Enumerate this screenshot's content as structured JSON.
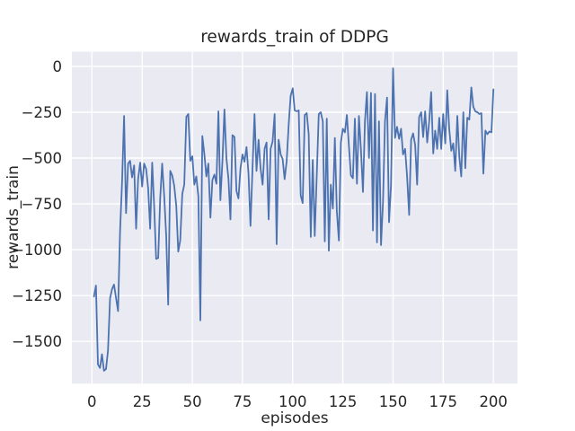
{
  "figure": {
    "title": "rewards_train of DDPG"
  },
  "chart_data": {
    "type": "line",
    "title": "rewards_train of DDPG",
    "xlabel": "episodes",
    "ylabel": "rewards_train",
    "x_ticks": [
      0,
      25,
      50,
      75,
      100,
      125,
      150,
      175,
      200
    ],
    "y_ticks": [
      0,
      -250,
      -500,
      -750,
      -1000,
      -1250,
      -1500
    ],
    "xlim": [
      -10,
      212
    ],
    "ylim": [
      -1730,
      80
    ],
    "grid": true,
    "legend": "none",
    "colors": {
      "line": "#4C72B0",
      "axes_background": "#EAEAF2",
      "grid": "#FFFFFF",
      "text": "#262626",
      "figure_background": "#FFFFFF"
    },
    "series": [
      {
        "name": "rewards_train",
        "x_start": 1,
        "x_step": 1,
        "values": [
          -1255,
          -1195,
          -1625,
          -1645,
          -1570,
          -1660,
          -1650,
          -1550,
          -1265,
          -1215,
          -1190,
          -1265,
          -1335,
          -905,
          -625,
          -270,
          -800,
          -530,
          -515,
          -605,
          -540,
          -885,
          -615,
          -525,
          -655,
          -530,
          -560,
          -665,
          -885,
          -525,
          -765,
          -1050,
          -1045,
          -720,
          -530,
          -710,
          -925,
          -1300,
          -570,
          -595,
          -650,
          -760,
          -1010,
          -950,
          -695,
          -645,
          -275,
          -260,
          -515,
          -490,
          -645,
          -600,
          -710,
          -1385,
          -380,
          -480,
          -600,
          -530,
          -825,
          -620,
          -590,
          -640,
          -245,
          -730,
          -515,
          -235,
          -500,
          -615,
          -835,
          -375,
          -385,
          -680,
          -720,
          -555,
          -480,
          -520,
          -440,
          -585,
          -870,
          -550,
          -260,
          -570,
          -400,
          -555,
          -645,
          -450,
          -415,
          -835,
          -450,
          -410,
          -260,
          -970,
          -400,
          -480,
          -505,
          -615,
          -515,
          -320,
          -160,
          -120,
          -240,
          -245,
          -240,
          -705,
          -745,
          -265,
          -255,
          -370,
          -930,
          -510,
          -925,
          -590,
          -260,
          -250,
          -300,
          -955,
          -285,
          -1005,
          -645,
          -775,
          -390,
          -790,
          -950,
          -415,
          -340,
          -360,
          -265,
          -430,
          -595,
          -610,
          -285,
          -640,
          -270,
          -450,
          -685,
          -300,
          -140,
          -500,
          -145,
          -895,
          -150,
          -960,
          -300,
          -975,
          -740,
          -300,
          -170,
          -850,
          -650,
          -10,
          -390,
          -330,
          -395,
          -340,
          -480,
          -450,
          -600,
          -810,
          -400,
          -365,
          -430,
          -645,
          -276,
          -250,
          -385,
          -245,
          -415,
          -300,
          -140,
          -475,
          -350,
          -450,
          -280,
          -450,
          -260,
          -420,
          -130,
          -340,
          -460,
          -420,
          -570,
          -270,
          -490,
          -600,
          -250,
          -555,
          -280,
          -290,
          -115,
          -220,
          -245,
          -250,
          -260,
          -255,
          -585,
          -350,
          -370,
          -355,
          -360,
          -125
        ]
      }
    ]
  }
}
